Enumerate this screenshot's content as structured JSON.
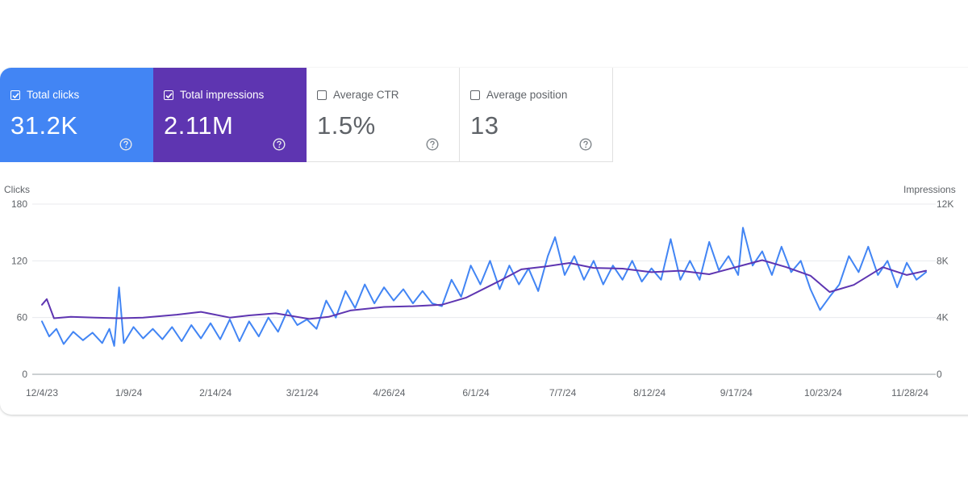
{
  "cards": [
    {
      "label": "Total clicks",
      "value": "31.2K",
      "checked": true,
      "color": "#4285f4"
    },
    {
      "label": "Total impressions",
      "value": "2.11M",
      "checked": true,
      "color": "#5e35b1"
    },
    {
      "label": "Average CTR",
      "value": "1.5%",
      "checked": false
    },
    {
      "label": "Average position",
      "value": "13",
      "checked": false
    }
  ],
  "icons": {
    "checkbox_checked": "checkbox-checked-icon",
    "checkbox_unchecked": "checkbox-icon",
    "help": "help-circle-icon"
  },
  "chart_data": {
    "type": "line",
    "ylabel_left": "Clicks",
    "ylabel_right": "Impressions",
    "y_left_ticks": [
      "0",
      "60",
      "120",
      "180"
    ],
    "y_right_ticks": [
      "0",
      "4K",
      "8K",
      "12K"
    ],
    "ylim_left": [
      0,
      180
    ],
    "ylim_right": [
      0,
      12000
    ],
    "x_tick_labels": [
      "12/4/23",
      "1/9/24",
      "2/14/24",
      "3/21/24",
      "4/26/24",
      "6/1/24",
      "7/7/24",
      "8/12/24",
      "9/17/24",
      "10/23/24",
      "11/28/24"
    ],
    "x_range": [
      "2023-12-04",
      "2024-12-05"
    ],
    "grid": true,
    "series": [
      {
        "name": "Clicks",
        "axis": "left",
        "color": "#4285f4",
        "points": [
          [
            "2023-12-04",
            56
          ],
          [
            "2023-12-07",
            40
          ],
          [
            "2023-12-10",
            48
          ],
          [
            "2023-12-13",
            32
          ],
          [
            "2023-12-17",
            45
          ],
          [
            "2023-12-21",
            36
          ],
          [
            "2023-12-25",
            44
          ],
          [
            "2023-12-29",
            33
          ],
          [
            "2024-01-01",
            48
          ],
          [
            "2024-01-03",
            30
          ],
          [
            "2024-01-05",
            92
          ],
          [
            "2024-01-07",
            33
          ],
          [
            "2024-01-11",
            50
          ],
          [
            "2024-01-15",
            38
          ],
          [
            "2024-01-19",
            48
          ],
          [
            "2024-01-23",
            37
          ],
          [
            "2024-01-27",
            50
          ],
          [
            "2024-01-31",
            35
          ],
          [
            "2024-02-04",
            52
          ],
          [
            "2024-02-08",
            38
          ],
          [
            "2024-02-12",
            54
          ],
          [
            "2024-02-16",
            37
          ],
          [
            "2024-02-20",
            58
          ],
          [
            "2024-02-24",
            35
          ],
          [
            "2024-02-28",
            56
          ],
          [
            "2024-03-03",
            40
          ],
          [
            "2024-03-07",
            60
          ],
          [
            "2024-03-11",
            45
          ],
          [
            "2024-03-15",
            68
          ],
          [
            "2024-03-19",
            52
          ],
          [
            "2024-03-23",
            58
          ],
          [
            "2024-03-27",
            48
          ],
          [
            "2024-03-31",
            78
          ],
          [
            "2024-04-04",
            60
          ],
          [
            "2024-04-08",
            88
          ],
          [
            "2024-04-12",
            70
          ],
          [
            "2024-04-16",
            95
          ],
          [
            "2024-04-20",
            75
          ],
          [
            "2024-04-24",
            92
          ],
          [
            "2024-04-28",
            78
          ],
          [
            "2024-05-02",
            90
          ],
          [
            "2024-05-06",
            75
          ],
          [
            "2024-05-10",
            88
          ],
          [
            "2024-05-14",
            75
          ],
          [
            "2024-05-18",
            72
          ],
          [
            "2024-05-22",
            100
          ],
          [
            "2024-05-26",
            82
          ],
          [
            "2024-05-30",
            115
          ],
          [
            "2024-06-03",
            95
          ],
          [
            "2024-06-07",
            120
          ],
          [
            "2024-06-11",
            90
          ],
          [
            "2024-06-15",
            115
          ],
          [
            "2024-06-19",
            95
          ],
          [
            "2024-06-23",
            112
          ],
          [
            "2024-06-27",
            88
          ],
          [
            "2024-07-01",
            125
          ],
          [
            "2024-07-04",
            145
          ],
          [
            "2024-07-08",
            105
          ],
          [
            "2024-07-12",
            125
          ],
          [
            "2024-07-16",
            100
          ],
          [
            "2024-07-20",
            120
          ],
          [
            "2024-07-24",
            95
          ],
          [
            "2024-07-28",
            115
          ],
          [
            "2024-08-01",
            100
          ],
          [
            "2024-08-05",
            120
          ],
          [
            "2024-08-09",
            98
          ],
          [
            "2024-08-13",
            112
          ],
          [
            "2024-08-17",
            100
          ],
          [
            "2024-08-21",
            143
          ],
          [
            "2024-08-25",
            100
          ],
          [
            "2024-08-29",
            120
          ],
          [
            "2024-09-02",
            100
          ],
          [
            "2024-09-06",
            140
          ],
          [
            "2024-09-10",
            110
          ],
          [
            "2024-09-14",
            125
          ],
          [
            "2024-09-18",
            105
          ],
          [
            "2024-09-20",
            155
          ],
          [
            "2024-09-24",
            115
          ],
          [
            "2024-09-28",
            130
          ],
          [
            "2024-10-02",
            105
          ],
          [
            "2024-10-06",
            135
          ],
          [
            "2024-10-10",
            108
          ],
          [
            "2024-10-14",
            120
          ],
          [
            "2024-10-18",
            90
          ],
          [
            "2024-10-22",
            68
          ],
          [
            "2024-10-26",
            82
          ],
          [
            "2024-10-30",
            95
          ],
          [
            "2024-11-03",
            125
          ],
          [
            "2024-11-07",
            108
          ],
          [
            "2024-11-11",
            135
          ],
          [
            "2024-11-15",
            105
          ],
          [
            "2024-11-19",
            120
          ],
          [
            "2024-11-23",
            92
          ],
          [
            "2024-11-27",
            118
          ],
          [
            "2024-12-01",
            100
          ],
          [
            "2024-12-05",
            108
          ]
        ]
      },
      {
        "name": "Impressions",
        "axis": "right",
        "color": "#5e35b1",
        "points": [
          [
            "2023-12-04",
            4900
          ],
          [
            "2023-12-06",
            5300
          ],
          [
            "2023-12-09",
            3950
          ],
          [
            "2023-12-16",
            4050
          ],
          [
            "2023-12-26",
            4000
          ],
          [
            "2024-01-05",
            3950
          ],
          [
            "2024-01-15",
            4000
          ],
          [
            "2024-01-29",
            4200
          ],
          [
            "2024-02-08",
            4400
          ],
          [
            "2024-02-20",
            4000
          ],
          [
            "2024-02-28",
            4150
          ],
          [
            "2024-03-10",
            4300
          ],
          [
            "2024-03-24",
            3900
          ],
          [
            "2024-04-01",
            4050
          ],
          [
            "2024-04-10",
            4500
          ],
          [
            "2024-04-24",
            4750
          ],
          [
            "2024-05-06",
            4800
          ],
          [
            "2024-05-18",
            4900
          ],
          [
            "2024-05-28",
            5400
          ],
          [
            "2024-06-10",
            6500
          ],
          [
            "2024-06-20",
            7400
          ],
          [
            "2024-06-30",
            7600
          ],
          [
            "2024-07-10",
            7850
          ],
          [
            "2024-07-20",
            7500
          ],
          [
            "2024-08-01",
            7450
          ],
          [
            "2024-08-13",
            7200
          ],
          [
            "2024-08-25",
            7300
          ],
          [
            "2024-09-06",
            7050
          ],
          [
            "2024-09-18",
            7600
          ],
          [
            "2024-09-28",
            8050
          ],
          [
            "2024-10-08",
            7550
          ],
          [
            "2024-10-18",
            6950
          ],
          [
            "2024-10-26",
            5800
          ],
          [
            "2024-11-05",
            6300
          ],
          [
            "2024-11-17",
            7550
          ],
          [
            "2024-11-27",
            7000
          ],
          [
            "2024-12-05",
            7300
          ]
        ]
      }
    ]
  }
}
